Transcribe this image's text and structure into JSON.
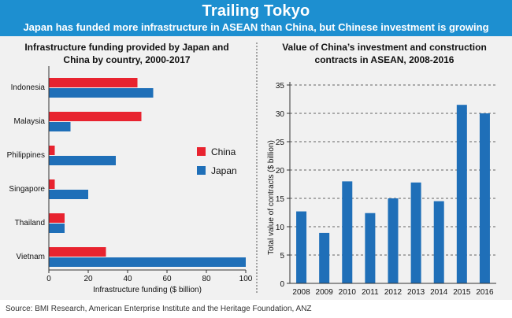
{
  "header": {
    "title": "Trailing Tokyo",
    "subtitle": "Japan has funded more infrastructure in ASEAN than China, but Chinese investment is growing"
  },
  "source": "Source: BMI Research, American Enterprise Institute and the Heritage Foundation, ANZ",
  "colors": {
    "header": "#1d8fd0",
    "china": "#e8232f",
    "japan": "#1f6fb8",
    "panel": "#f1f1f1"
  },
  "chart_data": [
    {
      "type": "bar",
      "orientation": "horizontal",
      "title": "Infrastructure funding provided by Japan and China by country, 2000-2017",
      "title_lines": [
        "Infrastructure funding provided by Japan and",
        "China by country, 2000-2017"
      ],
      "xlabel": "Infrastructure funding ($ billion)",
      "xlim": [
        0,
        100
      ],
      "xticks": [
        0,
        20,
        40,
        60,
        80,
        100
      ],
      "categories": [
        "Indonesia",
        "Malaysia",
        "Philippines",
        "Singapore",
        "Thailand",
        "Vietnam"
      ],
      "series": [
        {
          "name": "China",
          "color": "#e8232f",
          "values": [
            45,
            47,
            3,
            3,
            8,
            29
          ]
        },
        {
          "name": "Japan",
          "color": "#1f6fb8",
          "values": [
            53,
            11,
            34,
            20,
            8,
            100
          ]
        }
      ],
      "legend_position": "right"
    },
    {
      "type": "bar",
      "title": "Value of China's investment and construction contracts in ASEAN, 2008-2016",
      "title_lines": [
        "Value of China’s investment and construction",
        "contracts in ASEAN, 2008-2016"
      ],
      "ylabel": "Total value of contracts ($ billion)",
      "ylim": [
        0,
        35
      ],
      "yticks": [
        0,
        5,
        10,
        15,
        20,
        25,
        30,
        35
      ],
      "grid": "horizontal dashed",
      "categories": [
        "2008",
        "2009",
        "2010",
        "2011",
        "2012",
        "2013",
        "2014",
        "2015",
        "2016"
      ],
      "values": [
        12.7,
        8.9,
        18,
        12.4,
        15,
        17.8,
        14.5,
        31.5,
        30
      ],
      "color": "#1f6fb8"
    }
  ]
}
